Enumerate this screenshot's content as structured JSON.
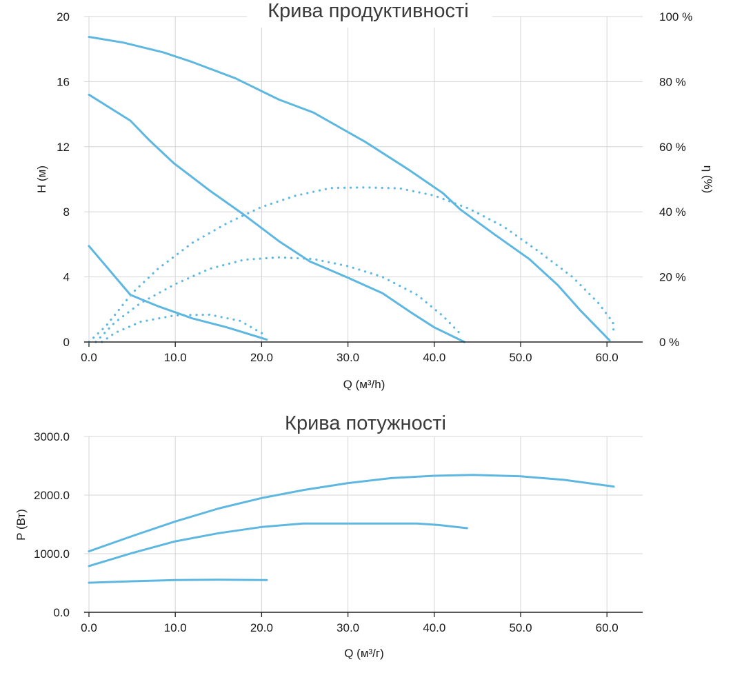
{
  "colors": {
    "curve": "#5db7e0",
    "grid": "#d4d4d4",
    "axis": "#222222"
  },
  "chart_data": [
    {
      "type": "line",
      "title": "Крива продуктивності",
      "xlabel": "Q (м³/h)",
      "ylabel": "H (м)",
      "y2label": "η (%)",
      "xlim": [
        0,
        64
      ],
      "ylim": [
        0,
        20
      ],
      "y2lim": [
        0,
        100
      ],
      "x_ticks": [
        "0.0",
        "10.0",
        "20.0",
        "30.0",
        "40.0",
        "50.0",
        "60.0"
      ],
      "y_ticks": [
        "0",
        "4",
        "8",
        "12",
        "16",
        "20"
      ],
      "y2_ticks": [
        "0 %",
        "20 %",
        "40 %",
        "60 %",
        "80 %",
        "100 %"
      ],
      "grid": true,
      "head_series": [
        {
          "points": [
            [
              0,
              18.75
            ],
            [
              4,
              18.4
            ],
            [
              8.6,
              17.8
            ],
            [
              12,
              17.2
            ],
            [
              17,
              16.2
            ],
            [
              22,
              14.9
            ],
            [
              26,
              14.1
            ],
            [
              32,
              12.3
            ],
            [
              37,
              10.6
            ],
            [
              41,
              9.15
            ],
            [
              43,
              8.15
            ],
            [
              47,
              6.6
            ],
            [
              51,
              5.1
            ],
            [
              54.3,
              3.5
            ],
            [
              57,
              1.9
            ],
            [
              60.3,
              0.1
            ]
          ]
        },
        {
          "points": [
            [
              0,
              15.2
            ],
            [
              4.8,
              13.6
            ],
            [
              7,
              12.4
            ],
            [
              9.8,
              11
            ],
            [
              14,
              9.3
            ],
            [
              18,
              7.8
            ],
            [
              22,
              6.2
            ],
            [
              25.6,
              4.95
            ],
            [
              30,
              3.95
            ],
            [
              34,
              3
            ],
            [
              37.2,
              1.85
            ],
            [
              40,
              0.9
            ],
            [
              43.5,
              0
            ]
          ]
        },
        {
          "points": [
            [
              0,
              5.9
            ],
            [
              4.8,
              2.9
            ],
            [
              8,
              2.2
            ],
            [
              12,
              1.45
            ],
            [
              16,
              0.9
            ],
            [
              20.6,
              0.15
            ]
          ]
        }
      ],
      "efficiency_series": [
        {
          "points": [
            [
              0,
              0
            ],
            [
              2,
              5
            ],
            [
              5,
              15
            ],
            [
              8,
              22.5
            ],
            [
              12,
              30.5
            ],
            [
              16,
              36.5
            ],
            [
              20,
              41.5
            ],
            [
              24,
              45
            ],
            [
              28,
              47.3
            ],
            [
              32,
              47.5
            ],
            [
              36,
              47.2
            ],
            [
              40,
              45
            ],
            [
              44,
              41
            ],
            [
              48,
              35.5
            ],
            [
              52,
              28
            ],
            [
              56,
              20
            ],
            [
              59,
              12
            ],
            [
              60.7,
              6
            ],
            [
              60.8,
              2
            ]
          ]
        },
        {
          "points": [
            [
              0.8,
              0
            ],
            [
              3,
              6
            ],
            [
              6,
              12
            ],
            [
              10,
              17.8
            ],
            [
              14,
              22.5
            ],
            [
              18,
              25.3
            ],
            [
              22,
              26
            ],
            [
              26,
              25.5
            ],
            [
              30,
              23.3
            ],
            [
              34,
              20
            ],
            [
              38,
              14.5
            ],
            [
              41,
              8
            ],
            [
              43.2,
              2
            ]
          ]
        },
        {
          "points": [
            [
              1.5,
              0
            ],
            [
              3,
              2.8
            ],
            [
              6,
              6.2
            ],
            [
              10,
              8.2
            ],
            [
              14,
              8.4
            ],
            [
              17.5,
              6.5
            ],
            [
              20.5,
              2
            ]
          ]
        }
      ]
    },
    {
      "type": "line",
      "title": "Крива потужності",
      "xlabel": "Q (м³/г)",
      "ylabel": "P (Вт)",
      "xlim": [
        0,
        64
      ],
      "ylim": [
        0,
        3000
      ],
      "x_ticks": [
        "0.0",
        "10.0",
        "20.0",
        "30.0",
        "40.0",
        "50.0",
        "60.0"
      ],
      "y_ticks": [
        "0.0",
        "1000.0",
        "2000.0",
        "3000.0"
      ],
      "grid": true,
      "series": [
        {
          "points": [
            [
              0,
              1040
            ],
            [
              5,
              1300
            ],
            [
              10,
              1550
            ],
            [
              15,
              1770
            ],
            [
              20,
              1950
            ],
            [
              25,
              2090
            ],
            [
              30,
              2205
            ],
            [
              35,
              2290
            ],
            [
              40,
              2330
            ],
            [
              44.5,
              2345
            ],
            [
              50,
              2320
            ],
            [
              55,
              2260
            ],
            [
              60.8,
              2145
            ]
          ]
        },
        {
          "points": [
            [
              0,
              790
            ],
            [
              5,
              1010
            ],
            [
              10,
              1210
            ],
            [
              15,
              1350
            ],
            [
              20,
              1455
            ],
            [
              24.8,
              1515
            ],
            [
              30,
              1515
            ],
            [
              38,
              1515
            ],
            [
              40.5,
              1490
            ],
            [
              43.8,
              1435
            ]
          ]
        },
        {
          "points": [
            [
              0,
              505
            ],
            [
              5,
              530
            ],
            [
              10,
              550
            ],
            [
              15,
              555
            ],
            [
              20.6,
              550
            ]
          ]
        }
      ]
    }
  ]
}
